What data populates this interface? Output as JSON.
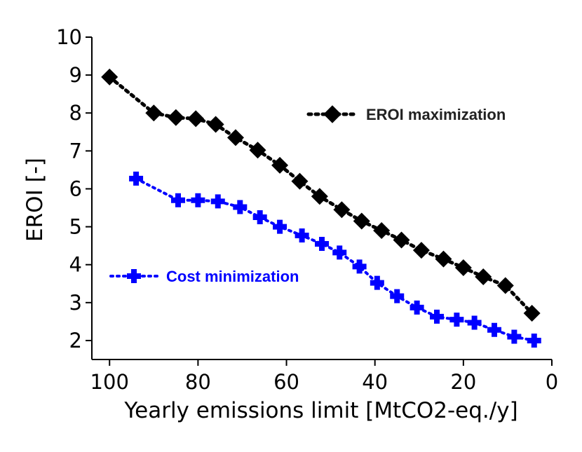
{
  "chart_data": {
    "type": "line",
    "title": "",
    "xlabel": "Yearly emissions limit [MtCO2-eq./y]",
    "ylabel": "EROI [-]",
    "xlim": [
      104,
      0
    ],
    "ylim": [
      1.5,
      10
    ],
    "x_ticks": [
      100,
      80,
      60,
      40,
      20,
      0
    ],
    "y_ticks": [
      2,
      3,
      4,
      5,
      6,
      7,
      8,
      9,
      10
    ],
    "grid": false,
    "series": [
      {
        "name": "EROI maximization",
        "color": "#000000",
        "marker": "diamond",
        "linestyle": "dotted",
        "x": [
          100,
          90,
          85,
          80.5,
          76,
          71.5,
          66.5,
          61.5,
          57,
          52.5,
          47.5,
          43,
          38.5,
          34,
          29.5,
          24.5,
          20,
          15.5,
          10.5,
          4.5
        ],
        "y": [
          8.95,
          8.0,
          7.88,
          7.85,
          7.7,
          7.35,
          7.02,
          6.62,
          6.2,
          5.8,
          5.45,
          5.15,
          4.9,
          4.65,
          4.38,
          4.15,
          3.92,
          3.68,
          3.45,
          2.72
        ]
      },
      {
        "name": "Cost minimization",
        "color": "#0000ff",
        "marker": "plus",
        "linestyle": "dotted",
        "x": [
          94,
          84.5,
          80,
          75.5,
          70.5,
          66,
          61.5,
          56.5,
          52,
          48,
          43.5,
          39.5,
          35,
          30.5,
          26,
          21.5,
          17.5,
          13,
          8.5,
          4
        ],
        "y": [
          6.27,
          5.7,
          5.7,
          5.67,
          5.52,
          5.25,
          5.0,
          4.77,
          4.55,
          4.32,
          3.95,
          3.52,
          3.17,
          2.87,
          2.63,
          2.55,
          2.47,
          2.28,
          2.1,
          2.0
        ]
      }
    ],
    "legend": [
      {
        "label": "EROI maximization",
        "color": "#222222",
        "position": "upper-right"
      },
      {
        "label": "Cost minimization",
        "color": "#0000ff",
        "position": "lower-left"
      }
    ]
  }
}
